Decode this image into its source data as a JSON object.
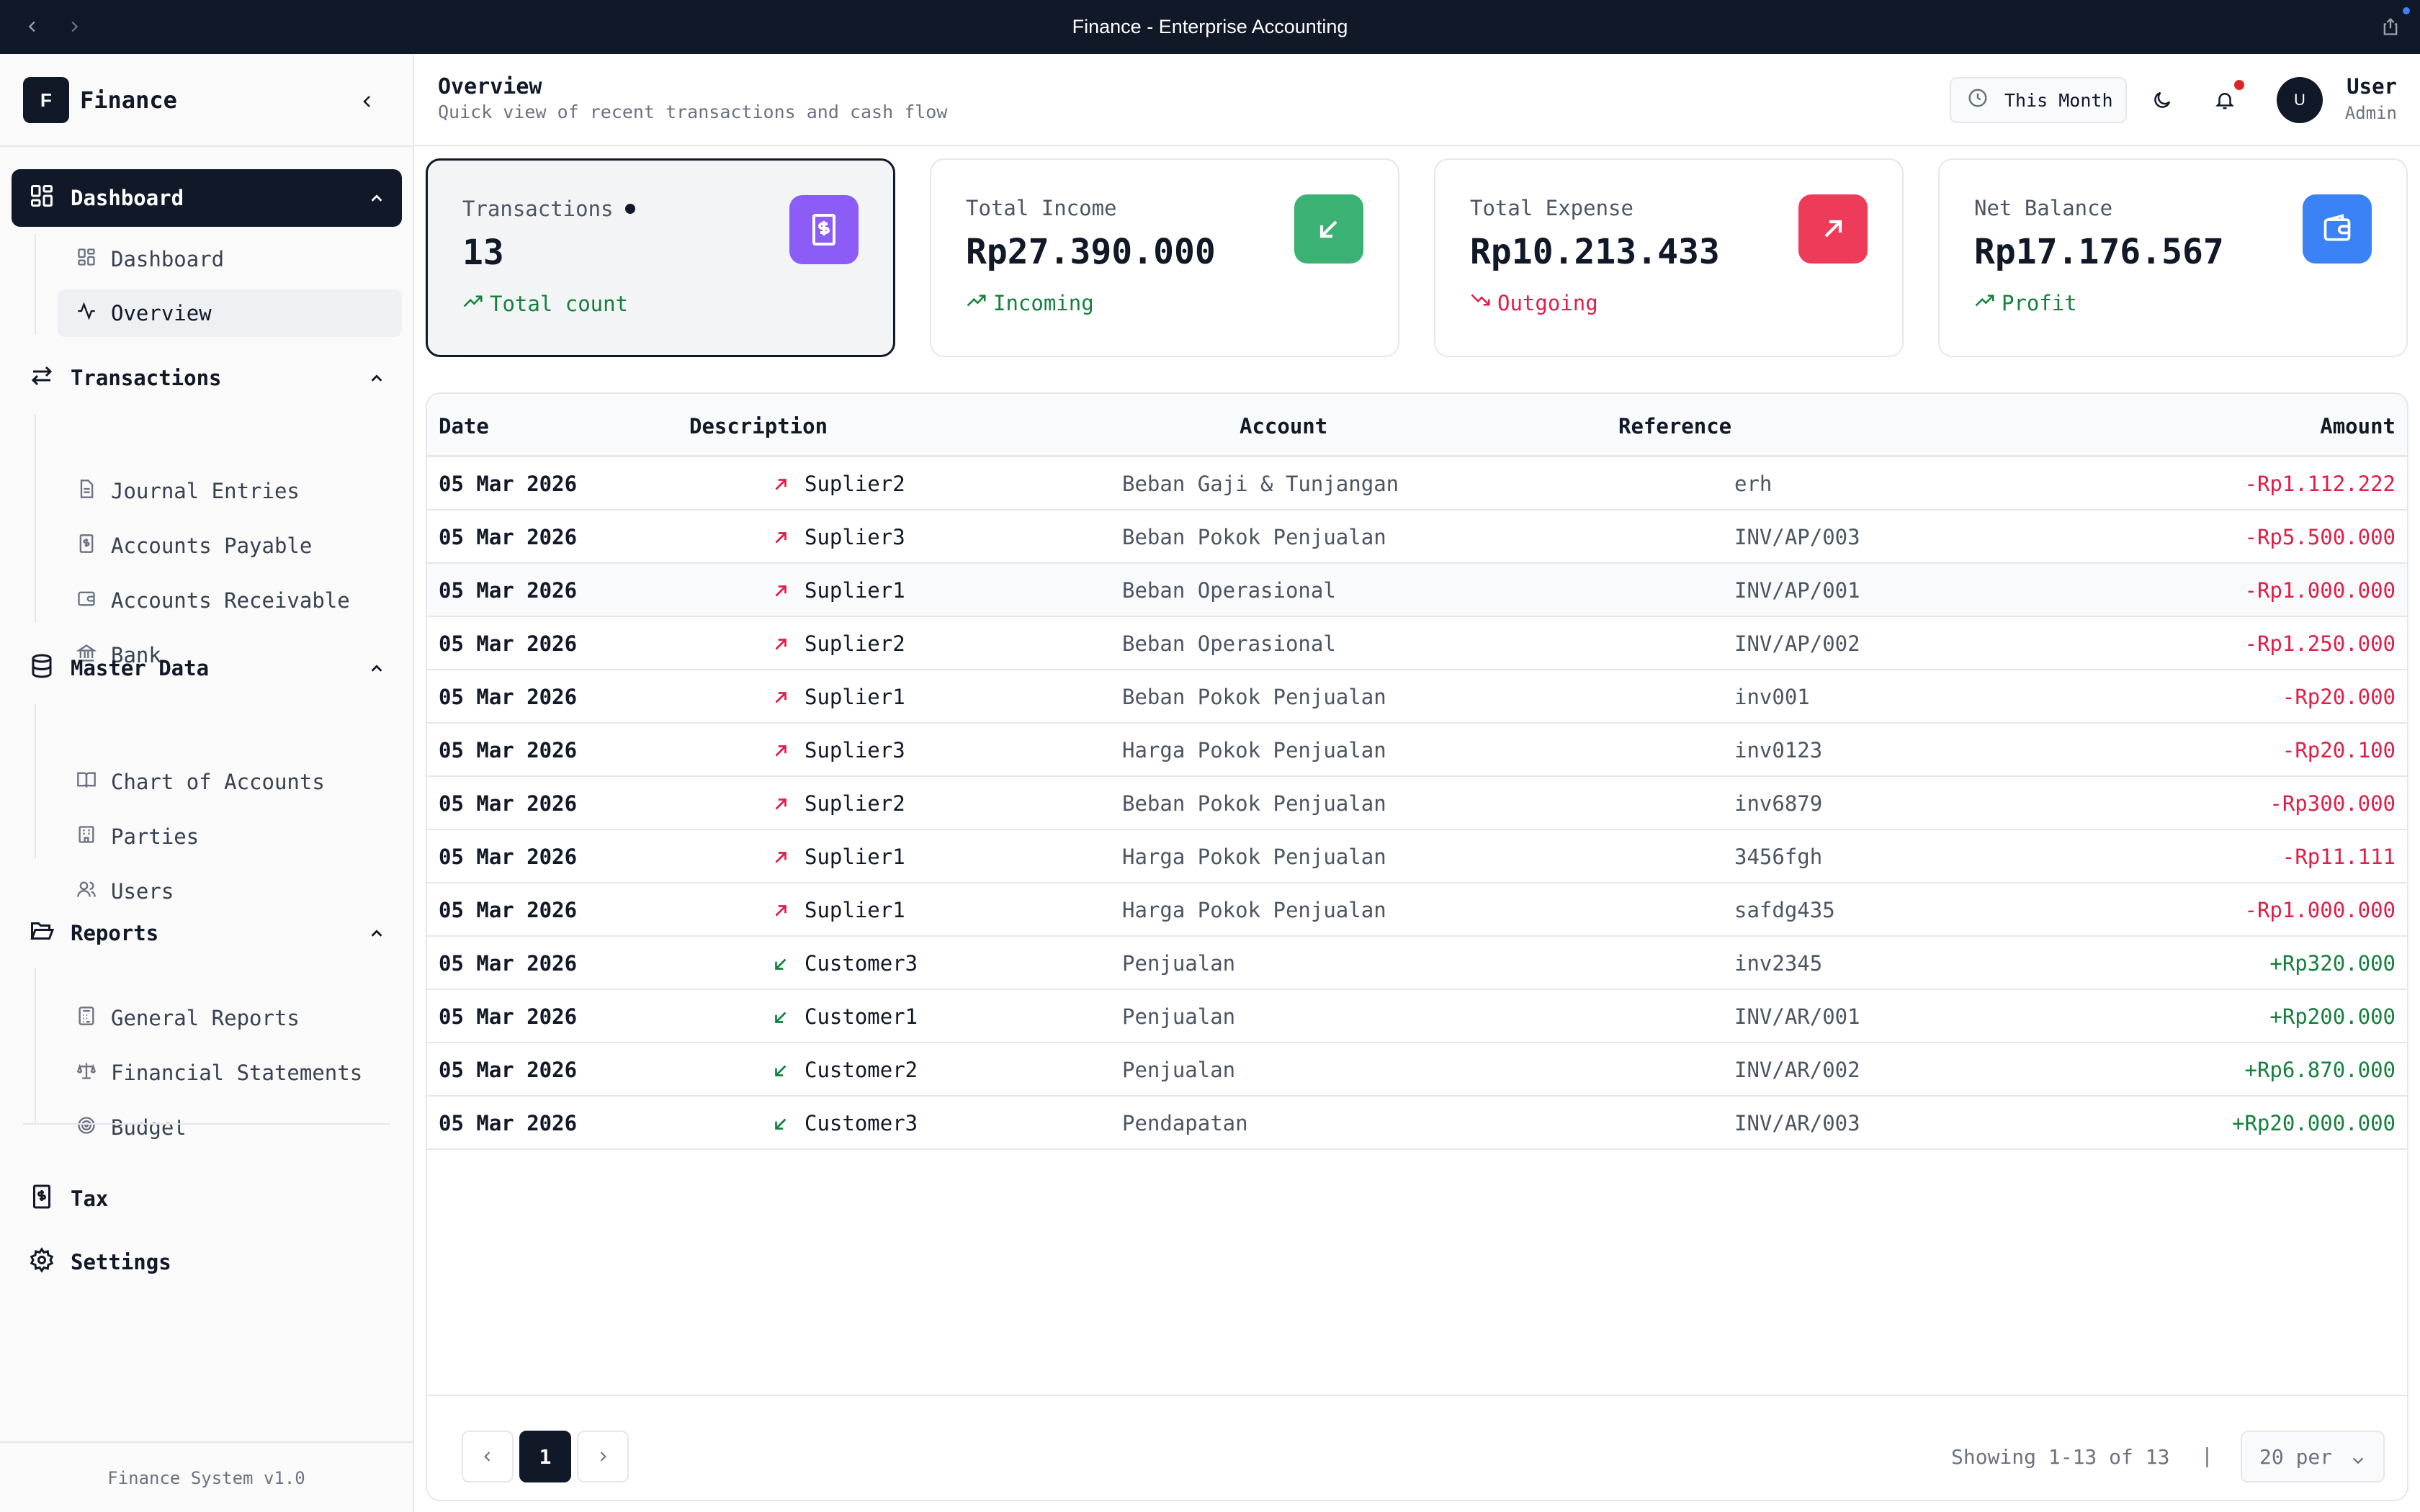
{
  "window": {
    "title": "Finance - Enterprise Accounting"
  },
  "sidebar": {
    "logo_letter": "F",
    "app_name": "Finance",
    "groups": [
      {
        "label": "Dashboard",
        "icon": "dashboard-grid-icon",
        "items": [
          {
            "label": "Dashboard",
            "icon": "grid-icon"
          },
          {
            "label": "Overview",
            "icon": "activity-icon"
          }
        ]
      },
      {
        "label": "Transactions",
        "icon": "arrows-exchange-icon",
        "items": [
          {
            "label": "Journal Entries",
            "icon": "document-icon"
          },
          {
            "label": "Accounts Payable",
            "icon": "dollar-doc-icon"
          },
          {
            "label": "Accounts Receivable",
            "icon": "wallet-icon"
          },
          {
            "label": "Bank",
            "icon": "bank-icon"
          }
        ]
      },
      {
        "label": "Master Data",
        "icon": "database-icon",
        "items": [
          {
            "label": "Chart of Accounts",
            "icon": "book-icon"
          },
          {
            "label": "Parties",
            "icon": "building-icon"
          },
          {
            "label": "Users",
            "icon": "users-icon"
          }
        ]
      },
      {
        "label": "Reports",
        "icon": "folder-open-icon",
        "items": [
          {
            "label": "General Reports",
            "icon": "calculator-icon"
          },
          {
            "label": "Financial Statements",
            "icon": "scale-icon"
          },
          {
            "label": "Budget",
            "icon": "target-icon"
          }
        ]
      }
    ],
    "tax_label": "Tax",
    "settings_label": "Settings",
    "footer": "Finance System v1.0"
  },
  "header": {
    "title": "Overview",
    "subtitle": "Quick view of recent transactions and cash flow",
    "period_button": "This Month",
    "user_initial": "U",
    "user_name": "User",
    "user_role": "Admin"
  },
  "cards": [
    {
      "label": "Transactions",
      "value": "13",
      "footer": "Total count",
      "icon": "receipt-dollar-icon",
      "accent": "#8b5cf6",
      "footer_color": "#15803d"
    },
    {
      "label": "Total Income",
      "value": "Rp27.390.000",
      "footer": "Incoming",
      "icon": "arrow-down-left-icon",
      "accent": "#3bb273",
      "footer_color": "#15803d"
    },
    {
      "label": "Total Expense",
      "value": "Rp10.213.433",
      "footer": "Outgoing",
      "icon": "arrow-up-right-icon",
      "accent": "#ef3b5a",
      "footer_color": "#e11d48"
    },
    {
      "label": "Net Balance",
      "value": "Rp17.176.567",
      "footer": "Profit",
      "icon": "wallet-icon",
      "accent": "#3b82f6",
      "footer_color": "#15803d"
    }
  ],
  "table": {
    "columns": [
      "Date",
      "Description",
      "Account",
      "Reference",
      "Amount"
    ],
    "rows": [
      {
        "date": "05 Mar 2026",
        "type": "out",
        "description": "Suplier2",
        "account": "Beban Gaji & Tunjangan",
        "reference": "erh",
        "amount": "-Rp1.112.222"
      },
      {
        "date": "05 Mar 2026",
        "type": "out",
        "description": "Suplier3",
        "account": "Beban Pokok Penjualan",
        "reference": "INV/AP/003",
        "amount": "-Rp5.500.000"
      },
      {
        "date": "05 Mar 2026",
        "type": "out",
        "description": "Suplier1",
        "account": "Beban Operasional",
        "reference": "INV/AP/001",
        "amount": "-Rp1.000.000"
      },
      {
        "date": "05 Mar 2026",
        "type": "out",
        "description": "Suplier2",
        "account": "Beban Operasional",
        "reference": "INV/AP/002",
        "amount": "-Rp1.250.000"
      },
      {
        "date": "05 Mar 2026",
        "type": "out",
        "description": "Suplier1",
        "account": "Beban Pokok Penjualan",
        "reference": "inv001",
        "amount": "-Rp20.000"
      },
      {
        "date": "05 Mar 2026",
        "type": "out",
        "description": "Suplier3",
        "account": "Harga Pokok Penjualan",
        "reference": "inv0123",
        "amount": "-Rp20.100"
      },
      {
        "date": "05 Mar 2026",
        "type": "out",
        "description": "Suplier2",
        "account": "Beban Pokok Penjualan",
        "reference": "inv6879",
        "amount": "-Rp300.000"
      },
      {
        "date": "05 Mar 2026",
        "type": "out",
        "description": "Suplier1",
        "account": "Harga Pokok Penjualan",
        "reference": "3456fgh",
        "amount": "-Rp11.111"
      },
      {
        "date": "05 Mar 2026",
        "type": "out",
        "description": "Suplier1",
        "account": "Harga Pokok Penjualan",
        "reference": "safdg435",
        "amount": "-Rp1.000.000"
      },
      {
        "date": "05 Mar 2026",
        "type": "in",
        "description": "Customer3",
        "account": "Penjualan",
        "reference": "inv2345",
        "amount": "+Rp320.000"
      },
      {
        "date": "05 Mar 2026",
        "type": "in",
        "description": "Customer1",
        "account": "Penjualan",
        "reference": "INV/AR/001",
        "amount": "+Rp200.000"
      },
      {
        "date": "05 Mar 2026",
        "type": "in",
        "description": "Customer2",
        "account": "Penjualan",
        "reference": "INV/AR/002",
        "amount": "+Rp6.870.000"
      },
      {
        "date": "05 Mar 2026",
        "type": "in",
        "description": "Customer3",
        "account": "Pendapatan",
        "reference": "INV/AR/003",
        "amount": "+Rp20.000.000"
      }
    ]
  },
  "pagination": {
    "current_page": "1",
    "showing": "Showing 1-13 of 13",
    "separator": "|",
    "per_page": "20 per"
  }
}
